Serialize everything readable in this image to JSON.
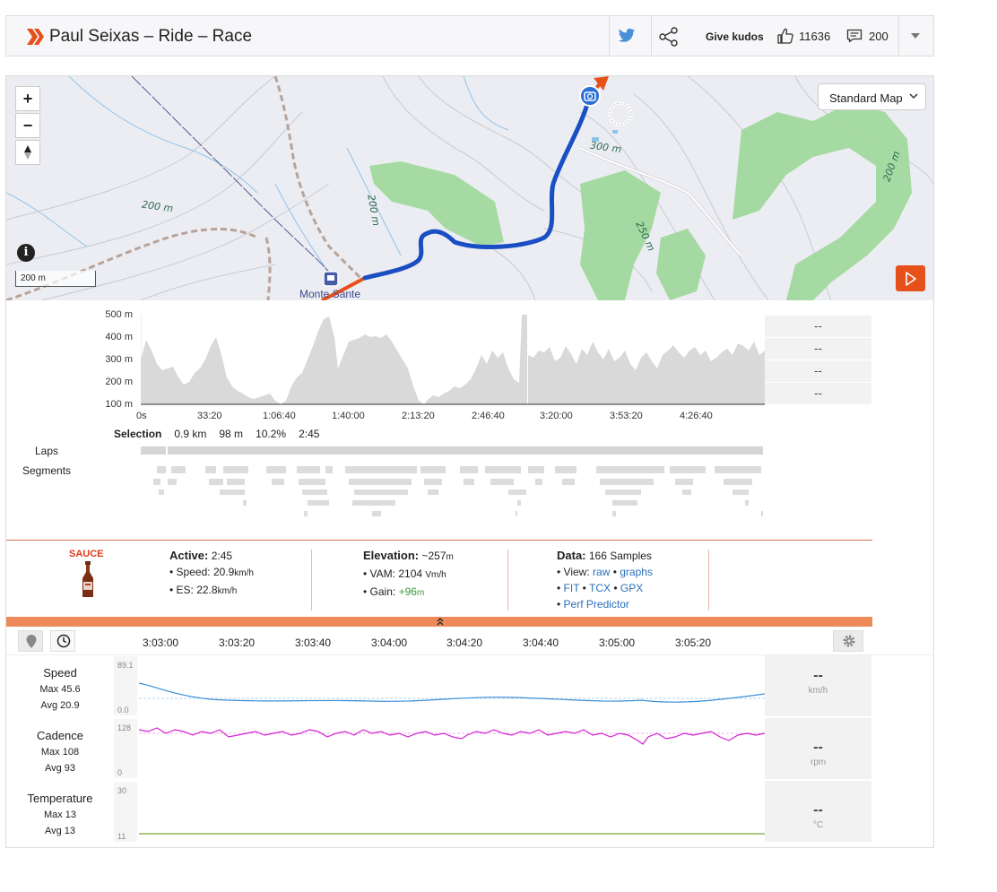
{
  "header": {
    "title": "Paul Seixas – Ride – Race",
    "give_kudos": "Give kudos",
    "kudos_count": "11636",
    "comment_count": "200"
  },
  "map": {
    "type_label": "Standard Map",
    "scale_label": "200 m",
    "place_label": "Monte Sante",
    "contour_labels": [
      "300 m",
      "200 m",
      "200 m",
      "250 m",
      "200 m"
    ],
    "route_color": "#1a4fc4",
    "accent_color": "#e6501a"
  },
  "elevation": {
    "y_ticks": [
      "500 m",
      "400 m",
      "300 m",
      "200 m",
      "100 m"
    ],
    "x_ticks": [
      "0s",
      "33:20",
      "1:06:40",
      "1:40:00",
      "2:13:20",
      "2:46:40",
      "3:20:00",
      "3:53:20",
      "4:26:40"
    ],
    "side_values": [
      "--",
      "--",
      "--",
      "--"
    ]
  },
  "selection": {
    "label": "Selection",
    "distance": "0.9 km",
    "elevation": "98 m",
    "grade": "10.2%",
    "time": "2:45"
  },
  "tracks": {
    "laps_label": "Laps",
    "segments_label": "Segments"
  },
  "sauce": {
    "brand": "SAUCE",
    "active_label": "Active:",
    "active_value": "2:45",
    "speed_label": "Speed:",
    "speed_value": "20.9",
    "speed_unit": "km/h",
    "es_label": "ES:",
    "es_value": "22.8",
    "es_unit": "km/h",
    "elevation_label": "Elevation:",
    "elevation_value": "~257",
    "elevation_unit": "m",
    "vam_label": "VAM:",
    "vam_value": "2104",
    "vam_unit": "Vm/h",
    "gain_label": "Gain:",
    "gain_value": "+96",
    "gain_unit": "m",
    "data_label": "Data:",
    "data_value": "166 Samples",
    "view_label": "View:",
    "view_raw": "raw",
    "view_graphs": "graphs",
    "fit": "FIT",
    "tcx": "TCX",
    "gpx": "GPX",
    "perf_predictor": "Perf Predictor"
  },
  "analysis": {
    "time_ticks": [
      "3:03:00",
      "3:03:20",
      "3:03:40",
      "3:04:00",
      "3:04:20",
      "3:04:40",
      "3:05:00",
      "3:05:20"
    ],
    "series": [
      {
        "name": "Speed",
        "max": "Max 45.6",
        "avg": "Avg 20.9",
        "top": "89.1",
        "bottom": "0.0",
        "value": "--",
        "unit": "km/h",
        "color": "#3b8fd6"
      },
      {
        "name": "Cadence",
        "max": "Max 108",
        "avg": "Avg 93",
        "top": "128",
        "bottom": "0",
        "value": "--",
        "unit": "rpm",
        "color": "#d21fd2"
      },
      {
        "name": "Temperature",
        "max": "Max 13",
        "avg": "Avg 13",
        "top": "30",
        "bottom": "11",
        "value": "--",
        "unit": "°C",
        "color": "#7ca33a"
      }
    ]
  }
}
